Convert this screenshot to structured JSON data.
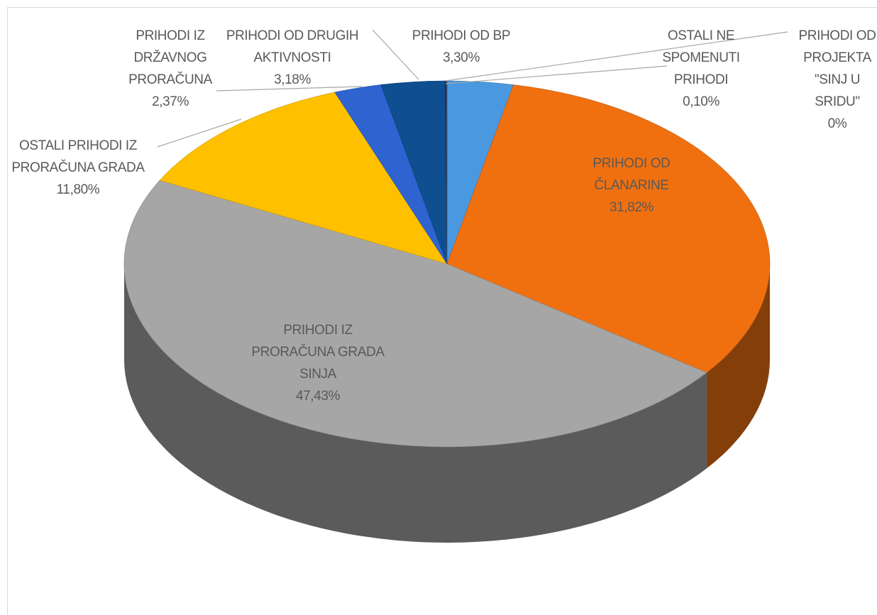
{
  "chart_data": {
    "type": "pie",
    "categories": [
      "PRIHODI OD BP",
      "PRIHODI OD ČLANARINE",
      "PRIHODI IZ PRORAČUNA GRADA SINJA",
      "OSTALI PRIHODI IZ PRORAČUNA GRADA",
      "PRIHODI IZ DRŽAVNOG PRORAČUNA",
      "PRIHODI OD DRUGIH AKTIVNOSTI",
      "OSTALI NE SPOMENUTI PRIHODI",
      "PRIHODI OD PROJEKTA \"SINJ U SRIDU\""
    ],
    "values": [
      3.3,
      31.82,
      47.43,
      11.8,
      2.37,
      3.18,
      0.1,
      0
    ],
    "value_labels": [
      "3,30%",
      "31,82%",
      "47,43%",
      "11,80%",
      "2,37%",
      "3,18%",
      "0,10%",
      "0%"
    ],
    "colors": [
      "#4a98e0",
      "#f07010",
      "#a6a6a6",
      "#ffc000",
      "#2e63d0",
      "#0f4f8f",
      "#1f3864",
      "#7f7f7f"
    ]
  }
}
